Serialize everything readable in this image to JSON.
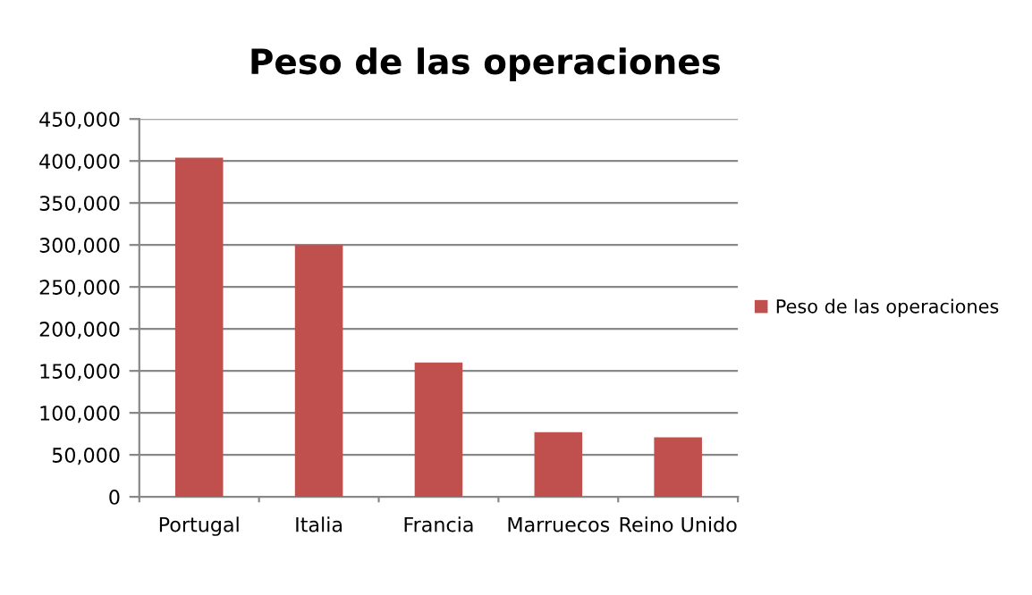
{
  "chart_data": {
    "type": "bar",
    "title": "Peso de las operaciones",
    "categories": [
      "Portugal",
      "Italia",
      "Francia",
      "Marruecos",
      "Reino Unido"
    ],
    "series": [
      {
        "name": "Peso de las operaciones",
        "color": "#c0504d",
        "values": [
          404000,
          300000,
          160000,
          77000,
          71000
        ]
      }
    ],
    "ylim": [
      0,
      450000
    ],
    "yticks": [
      {
        "value": 0,
        "label": "0"
      },
      {
        "value": 50000,
        "label": "50,000"
      },
      {
        "value": 100000,
        "label": "100,000"
      },
      {
        "value": 150000,
        "label": "150,000"
      },
      {
        "value": 200000,
        "label": "200,000"
      },
      {
        "value": 250000,
        "label": "250,000"
      },
      {
        "value": 300000,
        "label": "300,000"
      },
      {
        "value": 350000,
        "label": "350,000"
      },
      {
        "value": 400000,
        "label": "400,000"
      },
      {
        "value": 450000,
        "label": "450,000"
      }
    ],
    "grid": "y",
    "legend": "right"
  }
}
